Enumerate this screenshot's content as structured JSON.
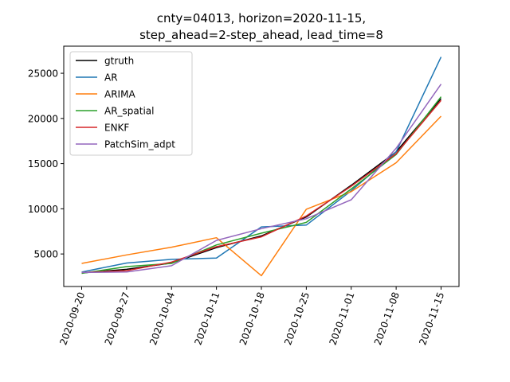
{
  "chart_data": {
    "type": "line",
    "title_lines": [
      "cnty=04013, horizon=2020-11-15,",
      "step_ahead=2-step_ahead, lead_time=8"
    ],
    "xlabel": "",
    "ylabel": "",
    "categories": [
      "2020-09-20",
      "2020-09-27",
      "2020-10-04",
      "2020-10-11",
      "2020-10-18",
      "2020-10-25",
      "2020-11-01",
      "2020-11-08",
      "2020-11-15"
    ],
    "ylim": [
      1400,
      28000
    ],
    "yticks": [
      5000,
      10000,
      15000,
      20000,
      25000
    ],
    "ytick_labels": [
      "5000",
      "10000",
      "15000",
      "20000",
      "25000"
    ],
    "grid": false,
    "legend_position": "upper-left",
    "series": [
      {
        "name": "gtruth",
        "color": "#000000",
        "values": [
          2900,
          3300,
          4000,
          5700,
          7000,
          9100,
          12600,
          16300,
          22200
        ]
      },
      {
        "name": "AR",
        "color": "#1f77b4",
        "values": [
          3000,
          4000,
          4400,
          4550,
          8000,
          8200,
          12000,
          16300,
          26800
        ]
      },
      {
        "name": "ARIMA",
        "color": "#ff7f0e",
        "values": [
          3950,
          4900,
          5750,
          6800,
          2600,
          9950,
          11900,
          15100,
          20250
        ]
      },
      {
        "name": "AR_spatial",
        "color": "#2ca02c",
        "values": [
          2850,
          3600,
          3950,
          6000,
          7300,
          8500,
          12200,
          16000,
          22400
        ]
      },
      {
        "name": "ENKF",
        "color": "#d62728",
        "values": [
          2950,
          3150,
          4100,
          5800,
          6900,
          9200,
          12500,
          16100,
          22000
        ]
      },
      {
        "name": "PatchSim_adpt",
        "color": "#9467bd",
        "values": [
          2950,
          3000,
          3700,
          6500,
          7800,
          8900,
          11000,
          16700,
          23800
        ]
      }
    ]
  }
}
